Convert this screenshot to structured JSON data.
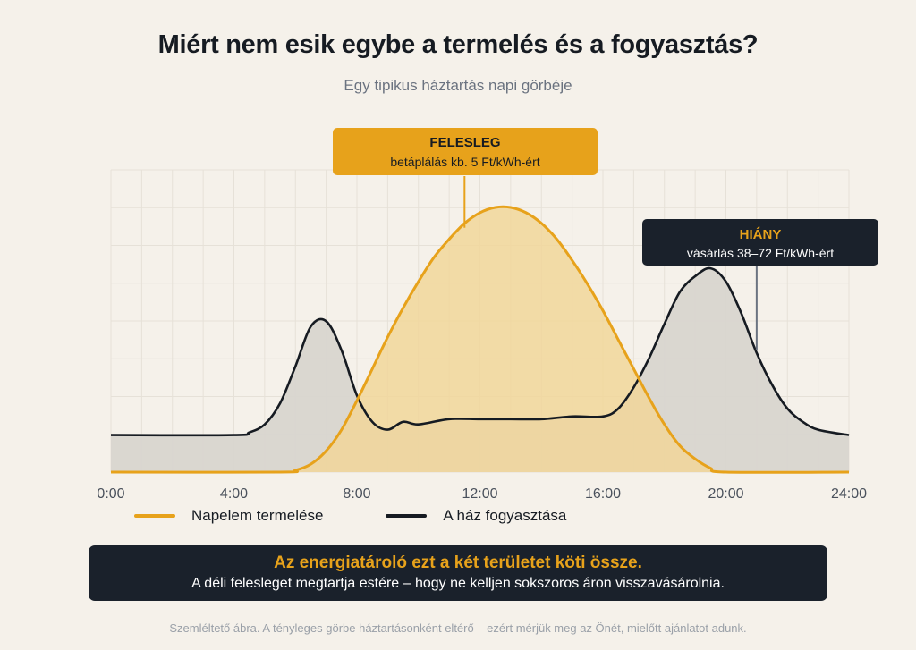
{
  "title": "Miért nem esik egybe a termelés és a fogyasztás?",
  "subtitle": "Egy tipikus háztartás napi görbéje",
  "colors": {
    "background": "#f5f1ea",
    "production": "#e7a21b",
    "production_fill": "#f1d597",
    "consumption": "#161b22",
    "consumption_fill": "#d8d5cf",
    "dark_box": "#1a212b"
  },
  "chart_data": {
    "type": "area",
    "xlim": [
      0,
      24
    ],
    "ylim": [
      0,
      1
    ],
    "x_ticks": [
      "0:00",
      "4:00",
      "8:00",
      "12:00",
      "16:00",
      "20:00",
      "24:00"
    ],
    "grid": true,
    "series": [
      {
        "name": "Napelem termelése",
        "x": [
          0,
          5.5,
          6,
          6.5,
          7,
          7.5,
          8,
          8.5,
          9,
          9.5,
          10,
          10.5,
          11,
          11.5,
          12,
          12.5,
          13,
          13.5,
          14,
          14.5,
          15,
          15.5,
          16,
          16.5,
          17,
          17.5,
          18,
          18.5,
          19,
          19.5,
          20,
          24
        ],
        "values": [
          0,
          0,
          0.007,
          0.03,
          0.08,
          0.16,
          0.27,
          0.39,
          0.51,
          0.62,
          0.72,
          0.81,
          0.88,
          0.94,
          0.98,
          1.0,
          1.0,
          0.98,
          0.94,
          0.88,
          0.8,
          0.71,
          0.61,
          0.5,
          0.39,
          0.28,
          0.18,
          0.1,
          0.05,
          0.015,
          0,
          0
        ]
      },
      {
        "name": "A ház fogyasztása",
        "x": [
          0,
          4,
          4.5,
          5,
          5.5,
          6,
          6.5,
          7,
          7.5,
          8,
          8.5,
          9,
          9.5,
          10,
          11,
          12,
          13,
          14,
          15,
          16,
          16.5,
          17,
          17.5,
          18,
          18.5,
          19,
          19.5,
          20,
          20.5,
          21,
          21.5,
          22,
          22.5,
          23,
          24
        ],
        "values": [
          0.14,
          0.14,
          0.15,
          0.18,
          0.26,
          0.4,
          0.55,
          0.57,
          0.46,
          0.29,
          0.19,
          0.16,
          0.19,
          0.18,
          0.2,
          0.2,
          0.2,
          0.2,
          0.21,
          0.21,
          0.24,
          0.32,
          0.43,
          0.56,
          0.68,
          0.74,
          0.77,
          0.72,
          0.6,
          0.45,
          0.33,
          0.24,
          0.19,
          0.16,
          0.14
        ]
      }
    ],
    "annotations": [
      {
        "id": "surplus",
        "heading": "FELESLEG",
        "text": "betáplálás kb. 5 Ft/kWh-ért",
        "point": [
          11.5,
          0.93
        ]
      },
      {
        "id": "deficit",
        "heading": "HIÁNY",
        "text": "vásárlás 38–72 Ft/kWh-ért",
        "point": [
          21,
          0.46
        ]
      }
    ]
  },
  "legend": {
    "production_label": "Napelem termelése",
    "consumption_label": "A ház fogyasztása"
  },
  "callout": {
    "headline": "Az energiatároló ezt a két területet köti össze.",
    "text": "A déli felesleget megtartja estére – hogy ne kelljen sokszoros áron visszavásárolnia."
  },
  "footnote": "Szemléltető ábra. A tényleges görbe háztartásonként eltérő – ezért mérjük meg az Önét, mielőtt ajánlatot adunk."
}
